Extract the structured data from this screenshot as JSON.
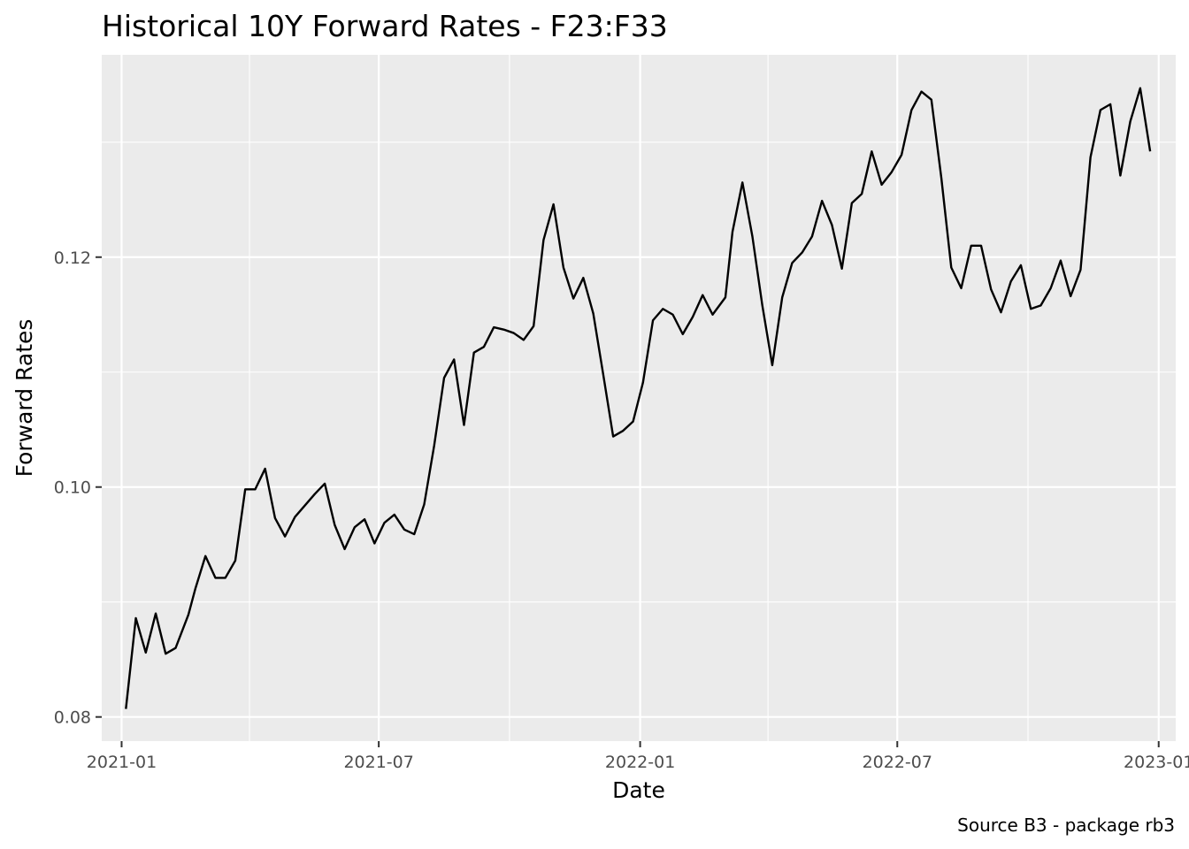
{
  "chart_data": {
    "type": "line",
    "title": "Historical 10Y Forward Rates - F23:F33",
    "xlabel": "Date",
    "ylabel": "Forward Rates",
    "caption": "Source B3 - package rb3",
    "grid": true,
    "legend": "none",
    "xlim": [
      "2020-12-18",
      "2023-01-13"
    ],
    "ylim": [
      0.0779,
      0.1376
    ],
    "x_ticks": [
      {
        "date": "2021-01-01",
        "label": "2021-01"
      },
      {
        "date": "2021-07-01",
        "label": "2021-07"
      },
      {
        "date": "2022-01-01",
        "label": "2022-01"
      },
      {
        "date": "2022-07-01",
        "label": "2022-07"
      },
      {
        "date": "2023-01-01",
        "label": "2023-01"
      }
    ],
    "x_minor_ticks": [
      "2021-04-01",
      "2021-10-01",
      "2022-04-01",
      "2022-10-01"
    ],
    "y_ticks": [
      {
        "value": 0.08,
        "label": "0.08"
      },
      {
        "value": 0.1,
        "label": "0.10"
      },
      {
        "value": 0.12,
        "label": "0.12"
      }
    ],
    "y_minor_ticks": [
      0.09,
      0.11,
      0.13
    ],
    "series": [
      {
        "name": "F23:F33",
        "color": "#000000",
        "points": [
          [
            "2021-01-04",
            0.0807
          ],
          [
            "2021-01-11",
            0.0886
          ],
          [
            "2021-01-18",
            0.0856
          ],
          [
            "2021-01-25",
            0.089
          ],
          [
            "2021-02-01",
            0.0855
          ],
          [
            "2021-02-08",
            0.086
          ],
          [
            "2021-02-17",
            0.0889
          ],
          [
            "2021-02-22",
            0.0912
          ],
          [
            "2021-03-01",
            0.094
          ],
          [
            "2021-03-08",
            0.0921
          ],
          [
            "2021-03-15",
            0.0921
          ],
          [
            "2021-03-22",
            0.0936
          ],
          [
            "2021-03-29",
            0.0998
          ],
          [
            "2021-04-05",
            0.0998
          ],
          [
            "2021-04-12",
            0.1016
          ],
          [
            "2021-04-19",
            0.0973
          ],
          [
            "2021-04-26",
            0.0957
          ],
          [
            "2021-05-03",
            0.0974
          ],
          [
            "2021-05-10",
            0.0984
          ],
          [
            "2021-05-17",
            0.0994
          ],
          [
            "2021-05-24",
            0.1003
          ],
          [
            "2021-05-31",
            0.0967
          ],
          [
            "2021-06-07",
            0.0946
          ],
          [
            "2021-06-14",
            0.0965
          ],
          [
            "2021-06-21",
            0.0972
          ],
          [
            "2021-06-28",
            0.0951
          ],
          [
            "2021-07-05",
            0.0969
          ],
          [
            "2021-07-12",
            0.0976
          ],
          [
            "2021-07-19",
            0.0963
          ],
          [
            "2021-07-26",
            0.0959
          ],
          [
            "2021-08-02",
            0.0985
          ],
          [
            "2021-08-09",
            0.1036
          ],
          [
            "2021-08-16",
            0.1095
          ],
          [
            "2021-08-23",
            0.1111
          ],
          [
            "2021-08-30",
            0.1054
          ],
          [
            "2021-09-06",
            0.1117
          ],
          [
            "2021-09-13",
            0.1122
          ],
          [
            "2021-09-20",
            0.1139
          ],
          [
            "2021-09-27",
            0.1137
          ],
          [
            "2021-10-04",
            0.1134
          ],
          [
            "2021-10-11",
            0.1128
          ],
          [
            "2021-10-18",
            0.114
          ],
          [
            "2021-10-25",
            0.1215
          ],
          [
            "2021-11-01",
            0.1246
          ],
          [
            "2021-11-08",
            0.1191
          ],
          [
            "2021-11-15",
            0.1164
          ],
          [
            "2021-11-22",
            0.1182
          ],
          [
            "2021-11-29",
            0.1151
          ],
          [
            "2021-12-06",
            0.1098
          ],
          [
            "2021-12-13",
            0.1044
          ],
          [
            "2021-12-20",
            0.1049
          ],
          [
            "2021-12-27",
            0.1057
          ],
          [
            "2022-01-03",
            0.1091
          ],
          [
            "2022-01-10",
            0.1145
          ],
          [
            "2022-01-17",
            0.1155
          ],
          [
            "2022-01-24",
            0.115
          ],
          [
            "2022-01-31",
            0.1133
          ],
          [
            "2022-02-07",
            0.1148
          ],
          [
            "2022-02-14",
            0.1167
          ],
          [
            "2022-02-21",
            0.115
          ],
          [
            "2022-03-02",
            0.1165
          ],
          [
            "2022-03-07",
            0.1222
          ],
          [
            "2022-03-14",
            0.1265
          ],
          [
            "2022-03-21",
            0.1218
          ],
          [
            "2022-03-28",
            0.1158
          ],
          [
            "2022-04-04",
            0.1106
          ],
          [
            "2022-04-11",
            0.1165
          ],
          [
            "2022-04-18",
            0.1195
          ],
          [
            "2022-04-25",
            0.1204
          ],
          [
            "2022-05-02",
            0.1218
          ],
          [
            "2022-05-09",
            0.1249
          ],
          [
            "2022-05-16",
            0.1228
          ],
          [
            "2022-05-23",
            0.119
          ],
          [
            "2022-05-30",
            0.1247
          ],
          [
            "2022-06-06",
            0.1255
          ],
          [
            "2022-06-13",
            0.1292
          ],
          [
            "2022-06-20",
            0.1263
          ],
          [
            "2022-06-27",
            0.1274
          ],
          [
            "2022-07-04",
            0.1289
          ],
          [
            "2022-07-11",
            0.1328
          ],
          [
            "2022-07-18",
            0.1344
          ],
          [
            "2022-07-25",
            0.1337
          ],
          [
            "2022-08-01",
            0.1269
          ],
          [
            "2022-08-08",
            0.1191
          ],
          [
            "2022-08-15",
            0.1173
          ],
          [
            "2022-08-22",
            0.121
          ],
          [
            "2022-08-29",
            0.121
          ],
          [
            "2022-09-05",
            0.1172
          ],
          [
            "2022-09-12",
            0.1152
          ],
          [
            "2022-09-19",
            0.1179
          ],
          [
            "2022-09-26",
            0.1193
          ],
          [
            "2022-10-03",
            0.1155
          ],
          [
            "2022-10-10",
            0.1158
          ],
          [
            "2022-10-17",
            0.1173
          ],
          [
            "2022-10-24",
            0.1197
          ],
          [
            "2022-10-31",
            0.1166
          ],
          [
            "2022-11-07",
            0.1189
          ],
          [
            "2022-11-14",
            0.1287
          ],
          [
            "2022-11-21",
            0.1328
          ],
          [
            "2022-11-28",
            0.1333
          ],
          [
            "2022-12-05",
            0.1271
          ],
          [
            "2022-12-12",
            0.1318
          ],
          [
            "2022-12-19",
            0.1347
          ],
          [
            "2022-12-26",
            0.1292
          ]
        ]
      }
    ]
  }
}
